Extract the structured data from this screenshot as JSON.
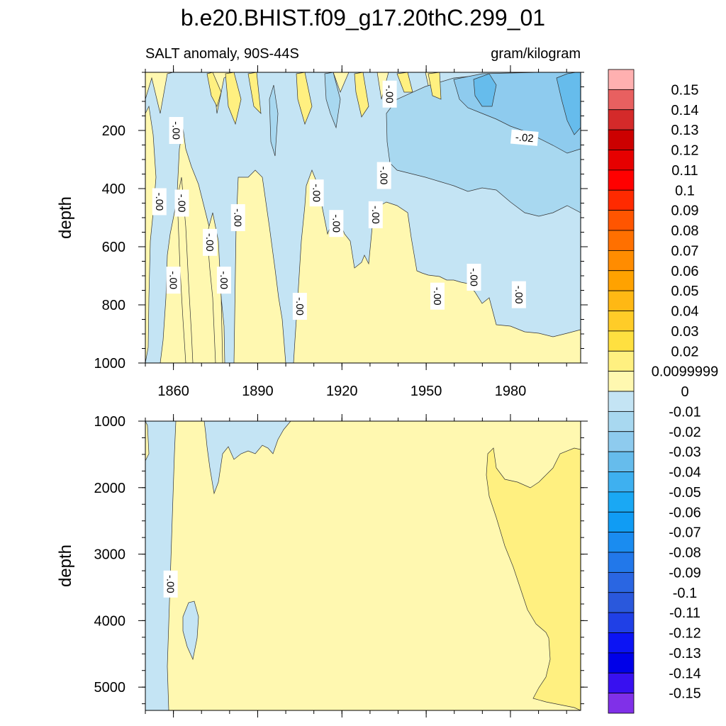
{
  "chart_data": {
    "type": "heatmap",
    "title": "b.e20.BHIST.f09_g17.20thC.299_01",
    "subtitle_left": "SALT anomaly, 90S-44S",
    "subtitle_right": "gram/kilogram",
    "panels": [
      {
        "name": "upper",
        "ylabel": "depth",
        "ylim": [
          0,
          1000
        ],
        "yticks": [
          200,
          400,
          600,
          800,
          1000
        ],
        "xlim": [
          1850,
          2005
        ],
        "xticks": [
          1860,
          1890,
          1920,
          1950,
          1980
        ],
        "contour_labels": [
          {
            "text": "-.00",
            "x": 1861,
            "y": 200
          },
          {
            "text": "-.00",
            "x": 1855,
            "y": 445
          },
          {
            "text": "-.00",
            "x": 1863,
            "y": 450
          },
          {
            "text": "-.00",
            "x": 1883,
            "y": 500
          },
          {
            "text": "-.00",
            "x": 1873,
            "y": 585
          },
          {
            "text": "-.00",
            "x": 1860,
            "y": 715
          },
          {
            "text": "-.00",
            "x": 1878,
            "y": 715
          },
          {
            "text": "-.00",
            "x": 1905,
            "y": 805
          },
          {
            "text": "-.00",
            "x": 1911,
            "y": 415
          },
          {
            "text": "-.00",
            "x": 1918,
            "y": 520
          },
          {
            "text": "-.00",
            "x": 1932,
            "y": 490
          },
          {
            "text": "-.00",
            "x": 1935,
            "y": 355
          },
          {
            "text": "-.00",
            "x": 1937,
            "y": 75
          },
          {
            "text": "-.00",
            "x": 1954,
            "y": 770
          },
          {
            "text": "-.00",
            "x": 1967,
            "y": 705
          },
          {
            "text": "-.00",
            "x": 1983,
            "y": 765
          },
          {
            "text": "-.02",
            "x": 1985,
            "y": 225
          }
        ]
      },
      {
        "name": "lower",
        "ylabel": "depth",
        "ylim": [
          1000,
          5350
        ],
        "yticks": [
          1000,
          2000,
          3000,
          4000,
          5000
        ],
        "xlim": [
          1850,
          2005
        ],
        "contour_labels": [
          {
            "text": "-.00",
            "x": 1859,
            "y": 3450
          }
        ]
      }
    ],
    "colorbar": {
      "levels": [
        "0.15",
        "0.14",
        "0.13",
        "0.12",
        "0.11",
        "0.1",
        "0.09",
        "0.08",
        "0.07",
        "0.06",
        "0.05",
        "0.04",
        "0.03",
        "0.02",
        "0.0099999",
        "0",
        "-0.01",
        "-0.02",
        "-0.03",
        "-0.04",
        "-0.05",
        "-0.06",
        "-0.07",
        "-0.08",
        "-0.09",
        "-0.1",
        "-0.11",
        "-0.12",
        "-0.13",
        "-0.14",
        "-0.15"
      ],
      "colors": [
        "#ffb0b0",
        "#e86060",
        "#d42a2a",
        "#cc0000",
        "#e60000",
        "#ff0000",
        "#ff2a00",
        "#ff5500",
        "#ff7000",
        "#ff8c00",
        "#ffa200",
        "#ffb814",
        "#ffcc28",
        "#ffe040",
        "#fff080",
        "#fff8b0",
        "#c4e4f4",
        "#a8d8f0",
        "#8ecbee",
        "#66bcec",
        "#3eb0f0",
        "#1aa8f4",
        "#109cf4",
        "#1a8cf0",
        "#2278ea",
        "#2a66e2",
        "#2a58dc",
        "#2040e6",
        "#0c14f4",
        "#0000e8",
        "#3810f0",
        "#8030e8"
      ],
      "units": "gram/kilogram"
    },
    "palette": {
      "neg_small": "#c4e4f4",
      "neg_mid": "#a8d8f0",
      "neg_dark": "#8ecbee",
      "neg_deep": "#66bcec",
      "pos_small": "#fff8b0",
      "pos_mid": "#fff080",
      "pos_warm": "#ffe040"
    }
  }
}
